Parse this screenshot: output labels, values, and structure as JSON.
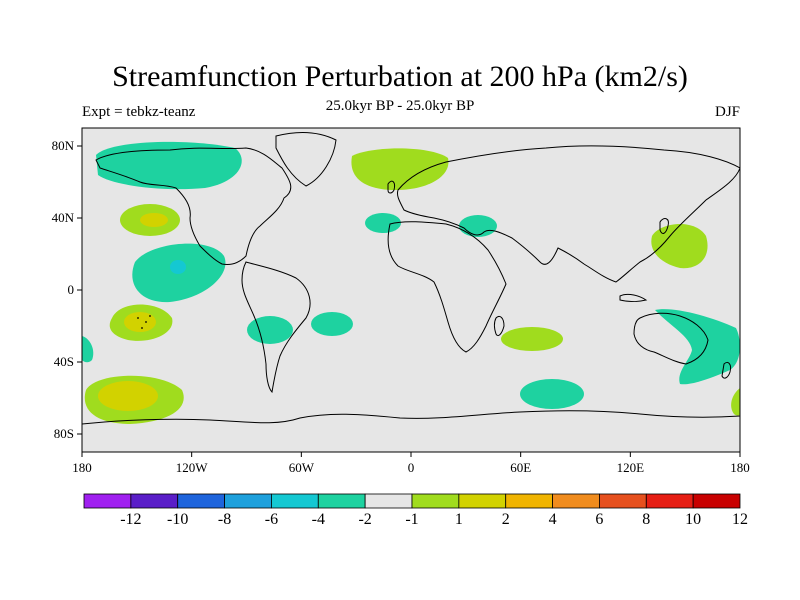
{
  "title": "Streamfunction Perturbation at 200 hPa (km2/s)",
  "subtitle": "25.0kyr BP - 25.0kyr BP",
  "left_string": "Expt = tebkz-teanz",
  "right_string": "DJF",
  "map": {
    "projection": "cylindrical-equidistant",
    "lon_range": [
      -180,
      180
    ],
    "lat_range": [
      -90,
      90
    ],
    "background_color": "#e6e6e6",
    "coastline_color": "#000000",
    "x_ticks": [
      "180",
      "120W",
      "60W",
      "0",
      "60E",
      "120E",
      "180"
    ],
    "y_ticks": [
      "80N",
      "40N",
      "0",
      "40S",
      "80S"
    ]
  },
  "colorbar": {
    "colors": [
      "#a020f0",
      "#5a1ec8",
      "#1e64dc",
      "#1ea0dc",
      "#14c8d2",
      "#1ed2a0",
      "#e6e6e6",
      "#a0dc1e",
      "#d2d200",
      "#f0b400",
      "#f08c1e",
      "#e6501e",
      "#e61e14",
      "#c80000"
    ],
    "labels": [
      "-12",
      "-10",
      "-8",
      "-6",
      "-4",
      "-2",
      "-1",
      "1",
      "2",
      "4",
      "6",
      "8",
      "10",
      "12"
    ]
  },
  "anomalies": [
    {
      "lon": -145,
      "lat": 75,
      "level": "-2"
    },
    {
      "lon": 5,
      "lat": 72,
      "level": "2"
    },
    {
      "lon": -147,
      "lat": 37,
      "level": "2"
    },
    {
      "lon": -130,
      "lat": 15,
      "level": "-2"
    },
    {
      "lon": -128,
      "lat": 12,
      "level": "-4"
    },
    {
      "lon": -147,
      "lat": -20,
      "level": "4"
    },
    {
      "lon": -75,
      "lat": -25,
      "level": "-2"
    },
    {
      "lon": -42,
      "lat": -20,
      "level": "-2"
    },
    {
      "lon": -174,
      "lat": -35,
      "level": "-2"
    },
    {
      "lon": -152,
      "lat": -63,
      "level": "4"
    },
    {
      "lon": -13,
      "lat": 36,
      "level": "-2"
    },
    {
      "lon": 35,
      "lat": 34,
      "level": "-2"
    },
    {
      "lon": 67,
      "lat": -28,
      "level": "2"
    },
    {
      "lon": 72,
      "lat": -60,
      "level": "-2"
    },
    {
      "lon": 145,
      "lat": 27,
      "level": "2"
    },
    {
      "lon": 158,
      "lat": -30,
      "level": "-2"
    },
    {
      "lon": 177,
      "lat": -62,
      "level": "2"
    }
  ]
}
